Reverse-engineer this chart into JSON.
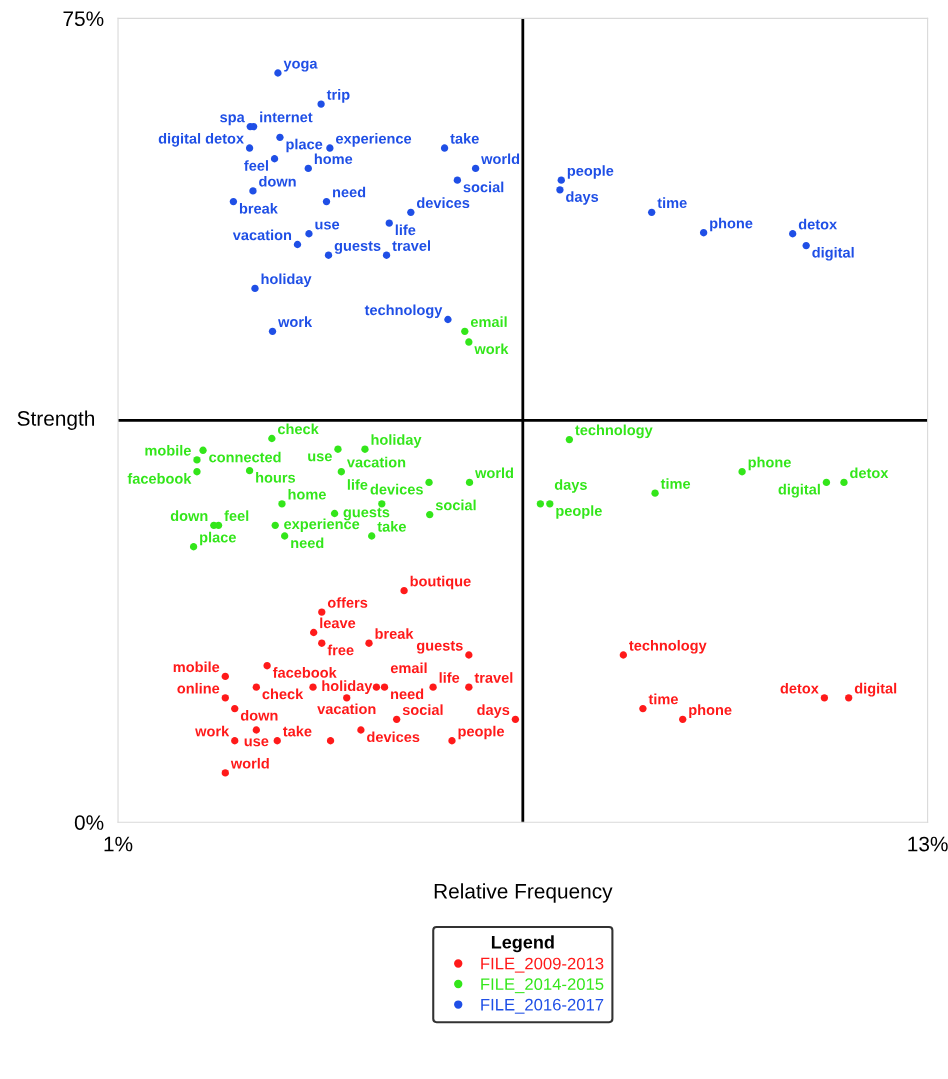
{
  "chart_data": {
    "type": "scatter",
    "xlabel": "Relative Frequency",
    "ylabel": "Strength",
    "legend_title": "Legend",
    "legend": "bottom",
    "marker": "circle",
    "grid": false,
    "xlim": [
      1,
      13
    ],
    "ylim": [
      0,
      75
    ],
    "xticks": [
      {
        "value": 1,
        "label": "1%"
      },
      {
        "value": 13,
        "label": "13%"
      }
    ],
    "yticks": [
      {
        "value": 0,
        "label": "0%"
      },
      {
        "value": 75,
        "label": "75%"
      }
    ],
    "ref_lines": [
      {
        "axis": "x",
        "value": 7,
        "color": "#000000"
      },
      {
        "axis": "y",
        "value": 37.5,
        "color": "#000000"
      }
    ],
    "series": [
      {
        "name": "FILE_2009-2013",
        "color": "#ff1a1a",
        "x": [
          5.24,
          4.02,
          3.9,
          4.02,
          4.72,
          6.2,
          3.21,
          2.59,
          3.05,
          3.89,
          4.83,
          4.95,
          5.67,
          6.2,
          2.59,
          4.39,
          2.73,
          5.13,
          6.89,
          4.6,
          3.05,
          2.73,
          3.36,
          4.15,
          5.95,
          2.59,
          8.49,
          8.78,
          9.37,
          11.47,
          11.83
        ],
        "values": [
          21.6,
          19.6,
          17.7,
          16.7,
          16.7,
          15.6,
          14.6,
          13.6,
          12.6,
          12.6,
          12.6,
          12.6,
          12.6,
          12.6,
          11.6,
          11.6,
          10.6,
          9.6,
          9.6,
          8.6,
          8.6,
          7.6,
          7.6,
          7.6,
          7.6,
          4.6,
          15.6,
          10.6,
          9.6,
          11.6,
          11.6
        ],
        "value_labels": [
          "boutique",
          "offers",
          "leave",
          "free",
          "break",
          "guests",
          "facebook",
          "mobile",
          "check",
          "holiday",
          "email",
          "need",
          "life",
          "travel",
          "online",
          "vacation",
          "down",
          "social",
          "days",
          "devices",
          "use",
          "work",
          "take",
          null,
          "people",
          "world",
          "technology",
          "time",
          "phone",
          "detox",
          "digital"
        ]
      },
      {
        "name": "FILE_2014-2015",
        "color": "#33e61a",
        "x": [
          6.14,
          6.2,
          3.28,
          2.26,
          2.17,
          2.17,
          2.95,
          4.26,
          4.66,
          4.31,
          5.61,
          6.21,
          3.43,
          3.33,
          2.42,
          2.49,
          4.21,
          4.91,
          5.62,
          3.47,
          4.76,
          2.12,
          7.69,
          10.25,
          11.5,
          11.76,
          8.96,
          7.26,
          7.4
        ],
        "values": [
          45.8,
          44.8,
          35.8,
          34.7,
          33.8,
          32.7,
          32.8,
          34.8,
          34.8,
          32.7,
          31.7,
          31.7,
          29.7,
          27.7,
          27.7,
          27.7,
          28.8,
          29.7,
          28.7,
          26.7,
          26.7,
          25.7,
          35.7,
          32.7,
          31.7,
          31.7,
          30.7,
          29.7,
          29.7
        ],
        "value_labels": [
          "email",
          "work",
          "check",
          "connected",
          "mobile",
          "facebook",
          "hours",
          "use",
          "holiday",
          "vacation",
          "devices",
          "world",
          "home",
          "experience",
          "down",
          "feel",
          "guests",
          "life",
          "social",
          "need",
          "take",
          "place",
          "technology",
          "phone",
          "digital",
          "detox",
          "time",
          "days",
          "people"
        ]
      },
      {
        "name": "FILE_2016-2017",
        "color": "#1f4fe6",
        "x": [
          3.37,
          4.01,
          2.96,
          3.01,
          3.4,
          2.95,
          4.14,
          3.32,
          3.82,
          5.84,
          6.3,
          6.03,
          3.0,
          2.71,
          4.09,
          5.34,
          5.02,
          3.83,
          3.66,
          4.12,
          4.98,
          3.03,
          3.29,
          5.89,
          7.57,
          7.55,
          8.91,
          9.68,
          11.0,
          11.2
        ],
        "values": [
          69.9,
          67.0,
          64.9,
          64.9,
          63.9,
          62.9,
          62.9,
          61.9,
          61.0,
          62.9,
          61.0,
          59.9,
          58.9,
          57.9,
          57.9,
          56.9,
          55.9,
          54.9,
          53.9,
          52.9,
          52.9,
          49.8,
          45.8,
          46.9,
          59.9,
          59.0,
          56.9,
          55.0,
          54.9,
          53.8
        ],
        "value_labels": [
          "yoga",
          "trip",
          "spa",
          "internet",
          "place",
          "digital detox",
          "experience",
          "feel",
          "home",
          "take",
          "world",
          "social",
          "down",
          "break",
          "need",
          "devices",
          "life",
          "use",
          "vacation",
          "guests",
          "travel",
          "holiday",
          "work",
          "technology",
          "people",
          "days",
          "time",
          "phone",
          "detox",
          "digital"
        ]
      }
    ]
  }
}
